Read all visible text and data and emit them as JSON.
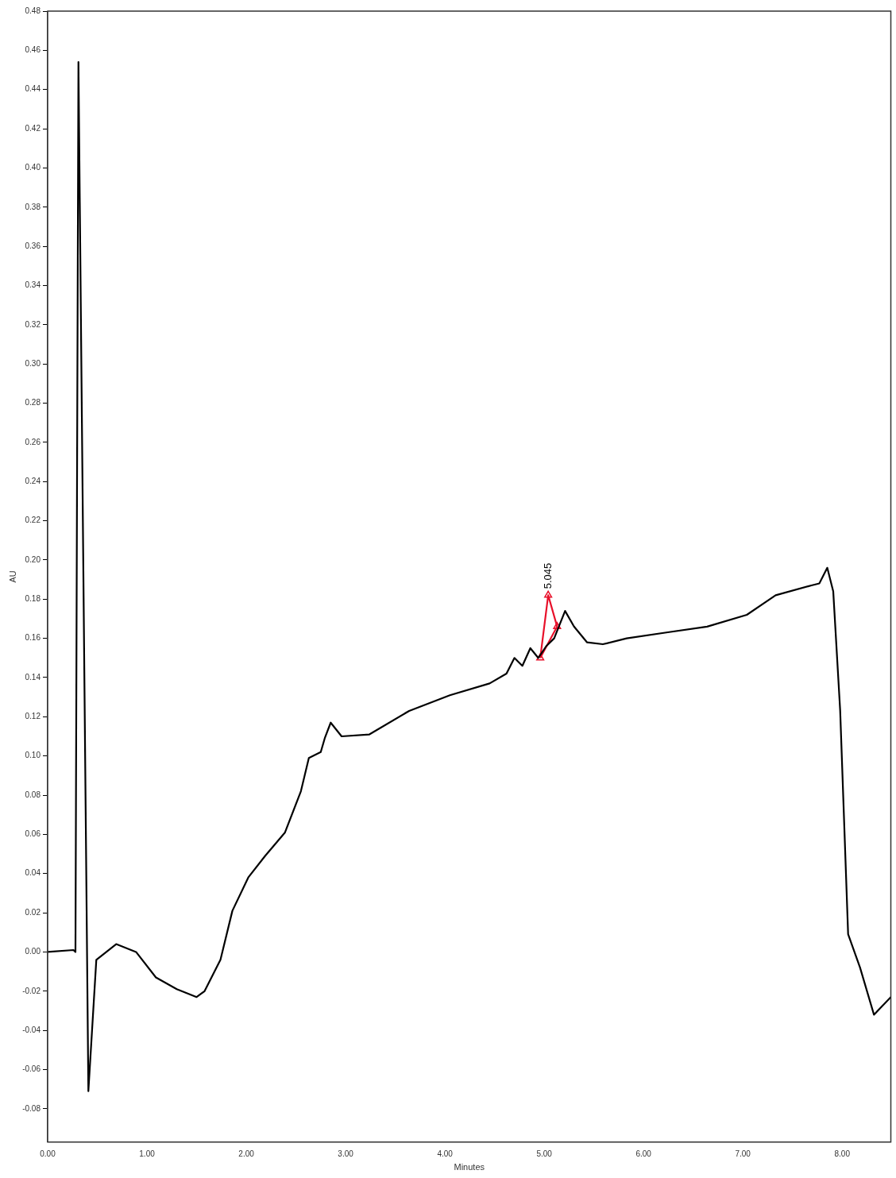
{
  "chart_data": {
    "type": "line",
    "xlabel": "Minutes",
    "ylabel": "AU",
    "xlim": [
      0,
      8.49
    ],
    "ylim": [
      -0.097,
      0.48
    ],
    "xticks": [
      {
        "value": 0,
        "label": "0.00"
      },
      {
        "value": 1,
        "label": "1.00"
      },
      {
        "value": 2,
        "label": "2.00"
      },
      {
        "value": 3,
        "label": "3.00"
      },
      {
        "value": 4,
        "label": "4.00"
      },
      {
        "value": 5,
        "label": "5.00"
      },
      {
        "value": 6,
        "label": "6.00"
      },
      {
        "value": 7,
        "label": "7.00"
      },
      {
        "value": 8,
        "label": "8.00"
      }
    ],
    "yticks": [
      {
        "value": -0.08,
        "label": "-0.08"
      },
      {
        "value": -0.06,
        "label": "-0.06"
      },
      {
        "value": -0.04,
        "label": "-0.04"
      },
      {
        "value": -0.02,
        "label": "-0.02"
      },
      {
        "value": 0,
        "label": "0.00"
      },
      {
        "value": 0.02,
        "label": "0.02"
      },
      {
        "value": 0.04,
        "label": "0.04"
      },
      {
        "value": 0.06,
        "label": "0.06"
      },
      {
        "value": 0.08,
        "label": "0.08"
      },
      {
        "value": 0.1,
        "label": "0.10"
      },
      {
        "value": 0.12,
        "label": "0.12"
      },
      {
        "value": 0.14,
        "label": "0.14"
      },
      {
        "value": 0.16,
        "label": "0.16"
      },
      {
        "value": 0.18,
        "label": "0.18"
      },
      {
        "value": 0.2,
        "label": "0.20"
      },
      {
        "value": 0.22,
        "label": "0.22"
      },
      {
        "value": 0.24,
        "label": "0.24"
      },
      {
        "value": 0.26,
        "label": "0.26"
      },
      {
        "value": 0.28,
        "label": "0.28"
      },
      {
        "value": 0.3,
        "label": "0.30"
      },
      {
        "value": 0.32,
        "label": "0.32"
      },
      {
        "value": 0.34,
        "label": "0.34"
      },
      {
        "value": 0.36,
        "label": "0.36"
      },
      {
        "value": 0.38,
        "label": "0.38"
      },
      {
        "value": 0.4,
        "label": "0.40"
      },
      {
        "value": 0.42,
        "label": "0.42"
      },
      {
        "value": 0.44,
        "label": "0.44"
      },
      {
        "value": 0.46,
        "label": "0.46"
      },
      {
        "value": 0.48,
        "label": "0.48"
      }
    ],
    "grid": false,
    "legend": false,
    "marker": "none",
    "line_style": "solid",
    "series": [
      {
        "color": "#000000",
        "x": [
          0,
          0.26,
          0.28,
          0.31,
          0.41,
          0.49,
          0.69,
          0.89,
          1.09,
          1.3,
          1.5,
          1.58,
          1.74,
          1.86,
          2.02,
          2.19,
          2.39,
          2.55,
          2.63,
          2.75,
          2.79,
          2.85,
          2.96,
          3.24,
          3.64,
          4.05,
          4.45,
          4.62,
          4.7,
          4.78,
          4.86,
          4.94,
          5.02,
          5.1,
          5.21,
          5.3,
          5.43,
          5.59,
          5.83,
          6.23,
          6.64,
          7.04,
          7.33,
          7.69,
          7.77,
          7.85,
          7.91,
          7.98,
          8.06,
          8.18,
          8.32,
          8.49
        ],
        "values": [
          0,
          0.001,
          0,
          0.454,
          -0.071,
          -0.004,
          0.004,
          0,
          -0.013,
          -0.019,
          -0.023,
          -0.02,
          -0.004,
          0.021,
          0.038,
          0.049,
          0.061,
          0.082,
          0.099,
          0.102,
          0.109,
          0.117,
          0.11,
          0.111,
          0.123,
          0.131,
          0.137,
          0.142,
          0.15,
          0.146,
          0.155,
          0.15,
          0.156,
          0.16,
          0.174,
          0.166,
          0.158,
          0.157,
          0.16,
          0.163,
          0.166,
          0.172,
          0.182,
          0.187,
          0.188,
          0.196,
          0.184,
          0.123,
          0.009,
          -0.008,
          -0.032,
          -0.023
        ]
      },
      {
        "color": "#e8102a",
        "marker": "triangle",
        "x": [
          4.96,
          5.04,
          5.13
        ],
        "values": [
          0.15,
          0.182,
          0.166
        ]
      },
      {
        "color": "#e8102a",
        "x": [
          4.96,
          5.13
        ],
        "values": [
          0.15,
          0.166
        ]
      }
    ],
    "annotations": [
      {
        "text": "5.045",
        "x": 5.045,
        "y": 0.182
      }
    ]
  }
}
